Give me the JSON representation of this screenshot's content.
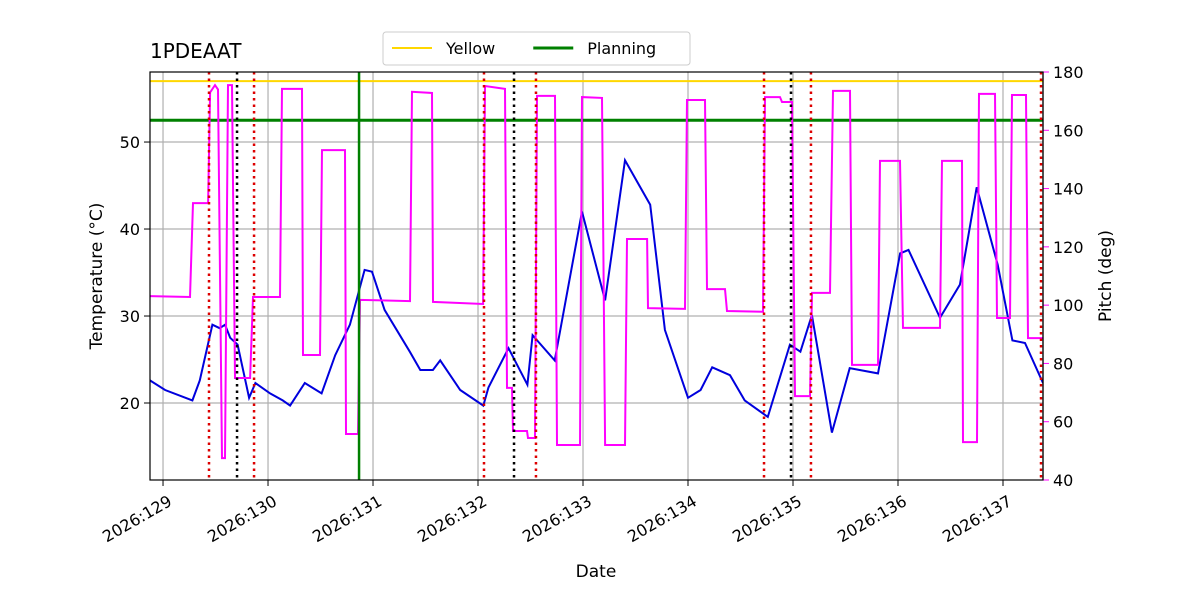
{
  "chart_data": {
    "type": "line",
    "title": "1PDEAAT",
    "xlabel": "Date",
    "ylabel": "Temperature (°C)",
    "y2label": "Pitch (deg)",
    "xlim": [
      128.876,
      137.381
    ],
    "ylim": [
      11.15,
      58.05
    ],
    "y2lim": [
      40,
      180
    ],
    "xticks": [
      {
        "value": 129,
        "label": "2026:129"
      },
      {
        "value": 130,
        "label": "2026:130"
      },
      {
        "value": 131,
        "label": "2026:131"
      },
      {
        "value": 132,
        "label": "2026:132"
      },
      {
        "value": 133,
        "label": "2026:133"
      },
      {
        "value": 134,
        "label": "2026:134"
      },
      {
        "value": 135,
        "label": "2026:135"
      },
      {
        "value": 136,
        "label": "2026:136"
      },
      {
        "value": 137,
        "label": "2026:137"
      }
    ],
    "yticks": [
      20,
      30,
      40,
      50
    ],
    "y2ticks": [
      40,
      60,
      80,
      100,
      120,
      140,
      160,
      180
    ],
    "grid": true,
    "legend": "top",
    "y2color": "#ff00ff",
    "reference_lines": [
      {
        "name": "Yellow",
        "color": "#ffd700",
        "value": 57
      },
      {
        "name": "Planning",
        "color": "#008000",
        "value": 52.5
      }
    ],
    "vlines": [
      {
        "color": "#dd0000",
        "style": "dotted",
        "x": [
          129.438,
          129.867,
          132.057,
          132.552,
          134.724,
          135.171,
          137.362
        ]
      },
      {
        "color": "#000000",
        "style": "dotted",
        "x": [
          129.705,
          132.343,
          134.981
        ]
      },
      {
        "color": "#008000",
        "style": "solid",
        "x": [
          130.867
        ]
      }
    ],
    "series": [
      {
        "color": "#0000dd",
        "axis": "y",
        "x": [
          128.876,
          129.02,
          129.28,
          129.35,
          129.47,
          129.54,
          129.59,
          129.64,
          129.71,
          129.82,
          129.88,
          130.02,
          130.14,
          130.21,
          130.35,
          130.51,
          130.64,
          130.78,
          130.92,
          130.99,
          131.11,
          131.35,
          131.45,
          131.57,
          131.64,
          131.83,
          132.05,
          132.1,
          132.29,
          132.47,
          132.52,
          132.73,
          132.99,
          133.21,
          133.4,
          133.64,
          133.78,
          134.0,
          134.12,
          134.23,
          134.4,
          134.54,
          134.76,
          134.97,
          135.07,
          135.18,
          135.37,
          135.54,
          135.81,
          136.02,
          136.1,
          136.4,
          136.59,
          136.75,
          136.95,
          137.09,
          137.21,
          137.381
        ],
        "values": [
          22.6,
          21.5,
          20.3,
          22.6,
          29.0,
          28.6,
          29.0,
          27.5,
          26.7,
          20.6,
          22.3,
          21.1,
          20.3,
          19.7,
          22.3,
          21.1,
          25.5,
          29.0,
          35.3,
          35.1,
          30.7,
          25.9,
          23.8,
          23.8,
          24.9,
          21.5,
          19.7,
          21.8,
          26.3,
          22.1,
          27.8,
          24.9,
          42.0,
          31.8,
          47.9,
          42.8,
          28.4,
          20.6,
          21.5,
          24.1,
          23.2,
          20.3,
          18.4,
          26.7,
          25.9,
          30.1,
          16.6,
          24.0,
          23.4,
          37.2,
          37.6,
          29.8,
          33.6,
          44.8,
          35.9,
          27.2,
          26.9,
          22.3
        ]
      },
      {
        "color": "#ff00ff",
        "axis": "y2",
        "x": [
          128.876,
          129.257,
          129.286,
          129.429,
          129.448,
          129.495,
          129.524,
          129.562,
          129.59,
          129.619,
          129.657,
          129.686,
          129.829,
          129.857,
          130.114,
          130.133,
          130.324,
          130.333,
          130.495,
          130.514,
          130.733,
          130.743,
          130.857,
          130.876,
          131.352,
          131.371,
          131.562,
          131.571,
          132.048,
          132.067,
          132.257,
          132.276,
          132.324,
          132.333,
          132.467,
          132.476,
          132.543,
          132.562,
          132.733,
          132.752,
          132.971,
          132.99,
          133.181,
          133.21,
          133.4,
          133.419,
          133.61,
          133.619,
          133.971,
          133.99,
          134.162,
          134.181,
          134.352,
          134.371,
          134.714,
          134.733,
          134.876,
          134.895,
          134.99,
          135.019,
          135.162,
          135.181,
          135.352,
          135.381,
          135.543,
          135.562,
          135.81,
          135.829,
          136.019,
          136.048,
          136.4,
          136.419,
          136.61,
          136.619,
          136.752,
          136.771,
          136.924,
          136.943,
          137.067,
          137.086,
          137.219,
          137.238,
          137.381
        ],
        "values": [
          103.1,
          102.8,
          135,
          135,
          173,
          175.5,
          174,
          47.5,
          47.5,
          175.5,
          175.5,
          75,
          75,
          102.8,
          102.8,
          174.2,
          174.2,
          82.9,
          82.9,
          153.2,
          153.2,
          55.8,
          55.8,
          101.8,
          101.4,
          173.2,
          172.8,
          101.1,
          100.4,
          175.2,
          174.2,
          71.6,
          71.6,
          56.8,
          56.8,
          54.4,
          54.4,
          171.8,
          171.8,
          52,
          52,
          171.4,
          171.1,
          52,
          52,
          122.7,
          122.7,
          99,
          98.7,
          170.4,
          170.4,
          105.5,
          105.5,
          98,
          97.7,
          171.4,
          171.4,
          169.7,
          169.7,
          68.8,
          68.8,
          104.2,
          104.2,
          173.5,
          173.5,
          79.5,
          79.5,
          149.5,
          149.5,
          92.2,
          92.2,
          149.5,
          149.5,
          53,
          53,
          172.5,
          172.5,
          95.6,
          95.6,
          172.1,
          172.1,
          88.7,
          88.7
        ]
      }
    ]
  }
}
